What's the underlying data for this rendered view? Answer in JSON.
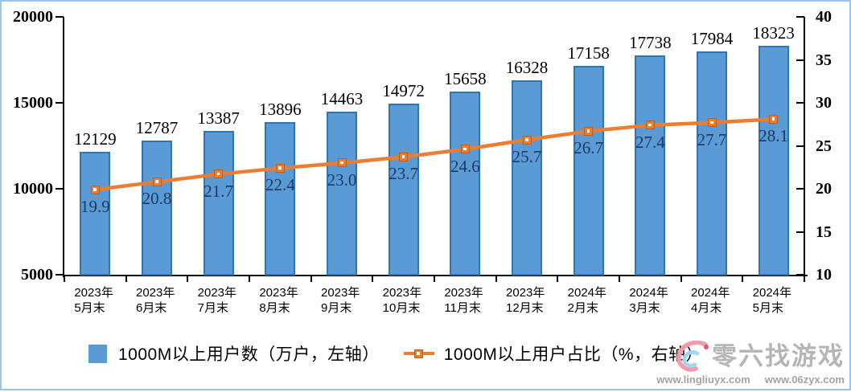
{
  "chart_data": {
    "type": "combo-bar-line",
    "title": "",
    "categories": [
      {
        "l1": "2023年",
        "l2": "5月末"
      },
      {
        "l1": "2023年",
        "l2": "6月末"
      },
      {
        "l1": "2023年",
        "l2": "7月末"
      },
      {
        "l1": "2023年",
        "l2": "8月末"
      },
      {
        "l1": "2023年",
        "l2": "9月末"
      },
      {
        "l1": "2023年",
        "l2": "10月末"
      },
      {
        "l1": "2023年",
        "l2": "11月末"
      },
      {
        "l1": "2023年",
        "l2": "12月末"
      },
      {
        "l1": "2024年",
        "l2": "2月末"
      },
      {
        "l1": "2024年",
        "l2": "3月末"
      },
      {
        "l1": "2024年",
        "l2": "4月末"
      },
      {
        "l1": "2024年",
        "l2": "5月末"
      }
    ],
    "series": [
      {
        "name": "1000M以上用户数（万户，左轴）",
        "type": "bar",
        "axis": "left",
        "color": "#5B9BD5",
        "border_color": "#2E75B6",
        "values": [
          12129,
          12787,
          13387,
          13896,
          14463,
          14972,
          15658,
          16328,
          17158,
          17738,
          17984,
          18323
        ],
        "labels": [
          "12129",
          "12787",
          "13387",
          "13896",
          "14463",
          "14972",
          "15658",
          "16328",
          "17158",
          "17738",
          "17984",
          "18323"
        ]
      },
      {
        "name": "1000M以上用户占比（%，右轴）",
        "type": "line",
        "axis": "right",
        "color": "#ED7D31",
        "label_color": "#1F3864",
        "values": [
          19.9,
          20.8,
          21.7,
          22.4,
          23.0,
          23.7,
          24.6,
          25.7,
          26.7,
          27.4,
          27.7,
          28.1
        ],
        "labels": [
          "19.9",
          "20.8",
          "21.7",
          "22.4",
          "23.0",
          "23.7",
          "24.6",
          "25.7",
          "26.7",
          "27.4",
          "27.7",
          "28.1"
        ]
      }
    ],
    "left_axis": {
      "min": 5000,
      "max": 20000,
      "ticks": [
        "20000",
        "15000",
        "10000",
        "5000"
      ]
    },
    "right_axis": {
      "min": 10,
      "max": 40,
      "ticks": [
        "40",
        "35",
        "30",
        "25",
        "20",
        "15",
        "10"
      ]
    },
    "grid": false,
    "legend_position": "bottom"
  },
  "legend": {
    "bar_label": "1000M以上用户数（万户，左轴）",
    "line_label": "1000M以上用户占比（%，右轴）"
  },
  "watermark": {
    "brand": "零六找游戏",
    "url1": "www.lingliuyx.com",
    "url2": "www.06zyx.com"
  },
  "colors": {
    "bar_fill": "#5B9BD5",
    "bar_border": "#2E75B6",
    "line": "#ED7D31",
    "line_label": "#1F3864",
    "frame_border": "#9DC3E6",
    "watermark_text": "#b5b5b5"
  }
}
